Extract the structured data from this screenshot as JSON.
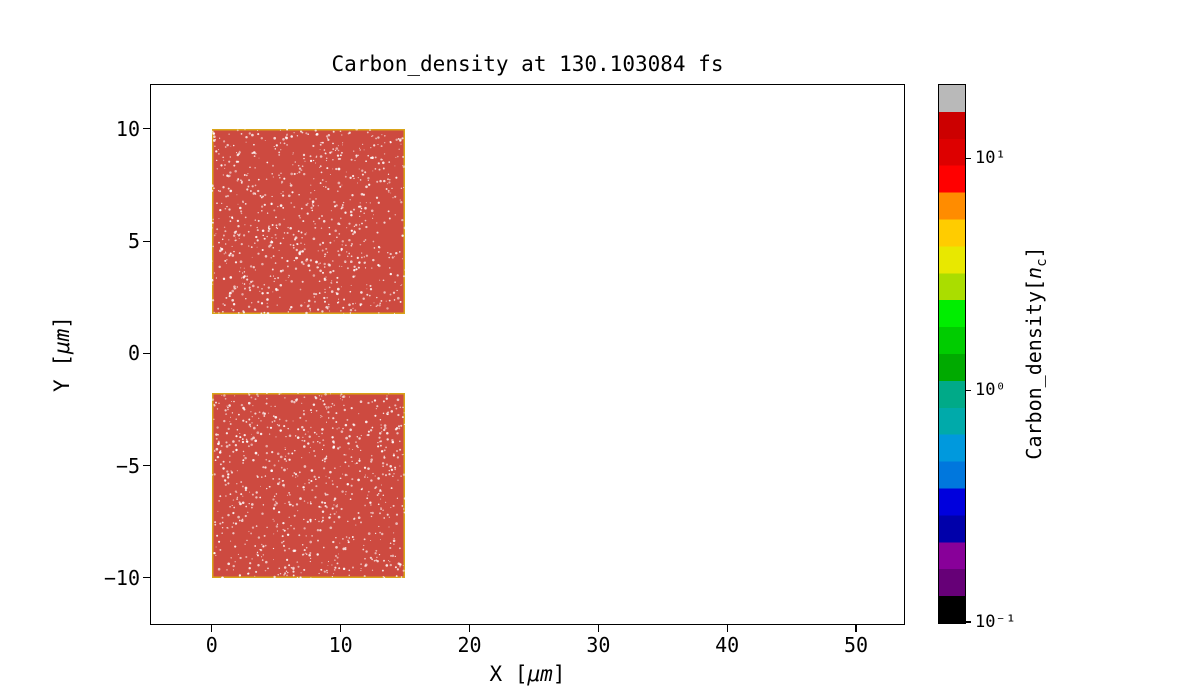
{
  "figure": {
    "title": "Carbon_density at 130.103084 fs",
    "xlabel": {
      "pre": "X [",
      "unit": "μm",
      "post": "]"
    },
    "ylabel": {
      "pre": "Y [",
      "unit": "μm",
      "post": "]"
    },
    "colorbar_label": {
      "pre": "Carbon_density[",
      "var": "n",
      "sub": "c",
      "post": "]"
    }
  },
  "chart_data": {
    "type": "heatmap",
    "title": "Carbon_density at 130.103084 fs",
    "time_fs": 130.103084,
    "xlabel": "X [μm]",
    "ylabel": "Y [μm]",
    "xlim": [
      -4.8,
      53.8
    ],
    "ylim": [
      -12.1,
      12.0
    ],
    "x_ticks": [
      0,
      10,
      20,
      30,
      40,
      50
    ],
    "y_ticks": [
      10,
      5,
      0,
      -5,
      -10
    ],
    "grid": false,
    "background_density_nc": 0,
    "regions": [
      {
        "name": "upper-target-slab",
        "x_range_um": [
          0,
          15
        ],
        "y_range_um": [
          1.75,
          10
        ],
        "density_nc": 12,
        "fill": "#cd4a40",
        "edge": "#d9a418",
        "texture": "white speckle noise"
      },
      {
        "name": "lower-target-slab",
        "x_range_um": [
          0,
          15
        ],
        "y_range_um": [
          -10,
          -1.75
        ],
        "density_nc": 12,
        "fill": "#cd4a40",
        "edge": "#d9a418",
        "texture": "white speckle noise"
      }
    ],
    "colorbar": {
      "label": "Carbon_density[n_c]",
      "scale": "log",
      "exponent_range": [
        -1,
        1.32
      ],
      "tick_exponents": [
        1,
        0,
        -1
      ],
      "tick_labels": [
        "10¹",
        "10⁰",
        "10⁻¹"
      ],
      "colormap": "nipy_spectral",
      "band_colors_top_to_bottom": [
        "#b9b9b9",
        "#cc0000",
        "#dd0000",
        "#ff0000",
        "#ff8c00",
        "#ffcc00",
        "#e8e800",
        "#aadd00",
        "#00ee00",
        "#00cc00",
        "#00aa00",
        "#00aa88",
        "#00aaaa",
        "#0099dd",
        "#0077dd",
        "#0000dd",
        "#0000aa",
        "#880099",
        "#660077",
        "#000000"
      ]
    }
  }
}
